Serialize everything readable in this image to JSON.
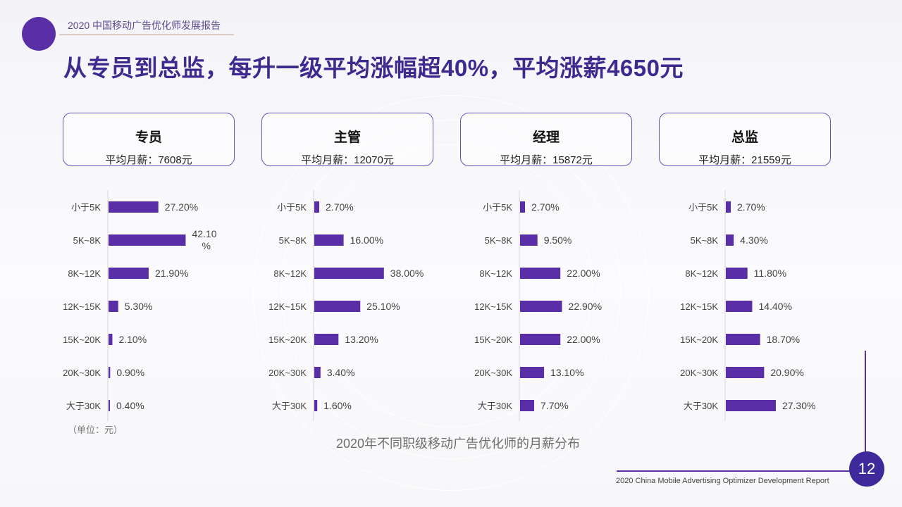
{
  "header": {
    "report_title": "2020 中国移动广告优化师发展报告"
  },
  "main_title": "从专员到总监，每升一级平均涨幅超40%，平均涨薪4650元",
  "cards": [
    {
      "title": "专员",
      "salary": "平均月薪：7608元"
    },
    {
      "title": "主管",
      "salary": "平均月薪：12070元"
    },
    {
      "title": "经理",
      "salary": "平均月薪：15872元"
    },
    {
      "title": "总监",
      "salary": "平均月薪：21559元"
    }
  ],
  "unit_note": "（单位：元）",
  "caption": "2020年不同职级移动广告优化师的月薪分布",
  "footer": {
    "report_en": "2020 China Mobile Advertising Optimizer Development Report",
    "page_number": "12"
  },
  "colors": {
    "bar": "#5a2ea6",
    "accent": "#3f2a9c"
  },
  "chart_data": [
    {
      "type": "bar",
      "orientation": "horizontal",
      "title": "专员",
      "categories": [
        "小于5K",
        "5K~8K",
        "8K~12K",
        "12K~15K",
        "15K~20K",
        "20K~30K",
        "大于30K"
      ],
      "values": [
        27.2,
        42.1,
        21.9,
        5.3,
        2.1,
        0.9,
        0.4
      ],
      "labels": [
        "27.20%",
        "42.10%",
        "21.90%",
        "5.30%",
        "2.10%",
        "0.90%",
        "0.40%"
      ]
    },
    {
      "type": "bar",
      "orientation": "horizontal",
      "title": "主管",
      "categories": [
        "小于5K",
        "5K~8K",
        "8K~12K",
        "12K~15K",
        "15K~20K",
        "20K~30K",
        "大于30K"
      ],
      "values": [
        2.7,
        16.0,
        38.0,
        25.1,
        13.2,
        3.4,
        1.6
      ],
      "labels": [
        "2.70%",
        "16.00%",
        "38.00%",
        "25.10%",
        "13.20%",
        "3.40%",
        "1.60%"
      ]
    },
    {
      "type": "bar",
      "orientation": "horizontal",
      "title": "经理",
      "categories": [
        "小于5K",
        "5K~8K",
        "8K~12K",
        "12K~15K",
        "15K~20K",
        "20K~30K",
        "大于30K"
      ],
      "values": [
        2.7,
        9.5,
        22.0,
        22.9,
        22.0,
        13.1,
        7.7
      ],
      "labels": [
        "2.70%",
        "9.50%",
        "22.00%",
        "22.90%",
        "22.00%",
        "13.10%",
        "7.70%"
      ]
    },
    {
      "type": "bar",
      "orientation": "horizontal",
      "title": "总监",
      "categories": [
        "小于5K",
        "5K~8K",
        "8K~12K",
        "12K~15K",
        "15K~20K",
        "20K~30K",
        "大于30K"
      ],
      "values": [
        2.7,
        4.3,
        11.8,
        14.4,
        18.7,
        20.9,
        27.3
      ],
      "labels": [
        "2.70%",
        "4.30%",
        "11.80%",
        "14.40%",
        "18.70%",
        "20.90%",
        "27.30%"
      ]
    }
  ]
}
